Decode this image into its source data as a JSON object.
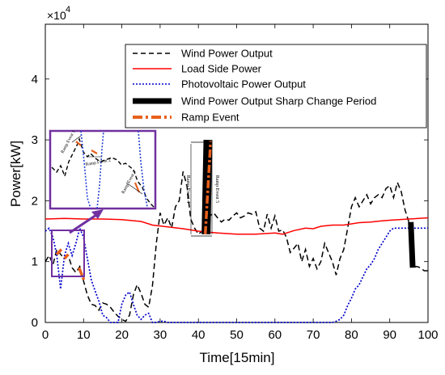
{
  "chart_data": {
    "type": "line",
    "xlabel": "Time[15min]",
    "ylabel": "Power[kW]",
    "exponent_base": "×10",
    "exponent_power": "4",
    "xlim": [
      0,
      100
    ],
    "ylim": [
      0,
      4.9
    ],
    "xticks": [
      0,
      10,
      20,
      30,
      40,
      50,
      60,
      70,
      80,
      90,
      100
    ],
    "yticks": [
      0,
      1,
      2,
      3,
      4
    ],
    "grid": false,
    "legend_position": "top-right",
    "legend": [
      {
        "label": "Wind Power Output",
        "style": "dashed-black"
      },
      {
        "label": "Load Side Power",
        "style": "solid-red"
      },
      {
        "label": "Photovoltaic Power Output",
        "style": "dotted-blue"
      },
      {
        "label": "Wind Power Output Sharp Change Period",
        "style": "thick-black"
      },
      {
        "label": "Ramp Event",
        "style": "dashdot-orange"
      }
    ],
    "series": [
      {
        "name": "Wind Power Output",
        "color": "#000000",
        "points": [
          [
            0,
            1.0
          ],
          [
            1,
            1.1
          ],
          [
            2,
            0.95
          ],
          [
            3,
            1.2
          ],
          [
            4,
            1.12
          ],
          [
            5,
            1.05
          ],
          [
            6,
            1.1
          ],
          [
            7,
            0.9
          ],
          [
            8,
            0.82
          ],
          [
            9,
            0.92
          ],
          [
            10,
            0.68
          ],
          [
            11,
            0.45
          ],
          [
            12,
            0.3
          ],
          [
            13,
            0.28
          ],
          [
            14,
            0.2
          ],
          [
            15,
            0.32
          ],
          [
            16,
            0.3
          ],
          [
            17,
            0.25
          ],
          [
            18,
            0.17
          ],
          [
            19,
            0.1
          ],
          [
            20,
            0.05
          ],
          [
            21,
            0.02
          ],
          [
            22,
            0.12
          ],
          [
            23,
            0.45
          ],
          [
            24,
            0.62
          ],
          [
            25,
            0.48
          ],
          [
            26,
            0.3
          ],
          [
            27,
            0.25
          ],
          [
            28,
            0.6
          ],
          [
            29,
            1.3
          ],
          [
            30,
            1.8
          ],
          [
            31,
            1.6
          ],
          [
            32,
            1.72
          ],
          [
            33,
            1.55
          ],
          [
            34,
            1.9
          ],
          [
            35,
            2.0
          ],
          [
            36,
            2.48
          ],
          [
            37,
            2.25
          ],
          [
            38,
            1.7
          ],
          [
            39,
            1.55
          ],
          [
            40,
            1.45
          ],
          [
            41,
            1.5
          ],
          [
            42,
            1.62
          ],
          [
            43,
            1.75
          ],
          [
            44,
            1.8
          ],
          [
            45,
            1.72
          ],
          [
            46,
            1.65
          ],
          [
            47,
            1.7
          ],
          [
            48,
            1.68
          ],
          [
            49,
            1.75
          ],
          [
            50,
            1.8
          ],
          [
            51,
            1.72
          ],
          [
            52,
            1.75
          ],
          [
            53,
            1.8
          ],
          [
            54,
            1.78
          ],
          [
            55,
            1.82
          ],
          [
            56,
            1.55
          ],
          [
            57,
            1.5
          ],
          [
            58,
            1.78
          ],
          [
            59,
            1.55
          ],
          [
            60,
            1.75
          ],
          [
            61,
            1.5
          ],
          [
            62,
            1.52
          ],
          [
            63,
            1.4
          ],
          [
            64,
            1.15
          ],
          [
            65,
            1.22
          ],
          [
            66,
            1.3
          ],
          [
            67,
            1.0
          ],
          [
            68,
            1.2
          ],
          [
            69,
            0.92
          ],
          [
            70,
            1.05
          ],
          [
            71,
            0.88
          ],
          [
            72,
            1.0
          ],
          [
            73,
            1.3
          ],
          [
            74,
            1.15
          ],
          [
            75,
            1.0
          ],
          [
            76,
            0.78
          ],
          [
            77,
            1.05
          ],
          [
            78,
            1.2
          ],
          [
            79,
            1.55
          ],
          [
            80,
            1.9
          ],
          [
            81,
            2.05
          ],
          [
            82,
            1.9
          ],
          [
            83,
            2.0
          ],
          [
            84,
            2.1
          ],
          [
            85,
            1.95
          ],
          [
            86,
            2.05
          ],
          [
            87,
            2.1
          ],
          [
            88,
            2.05
          ],
          [
            89,
            2.2
          ],
          [
            90,
            2.25
          ],
          [
            91,
            2.05
          ],
          [
            92,
            2.3
          ],
          [
            93,
            2.15
          ],
          [
            94,
            1.85
          ],
          [
            95,
            1.65
          ],
          [
            96,
            0.9
          ],
          [
            97,
            0.92
          ],
          [
            98,
            0.9
          ],
          [
            99,
            0.85
          ],
          [
            100,
            0.85
          ]
        ]
      },
      {
        "name": "Load Side Power",
        "color": "#ff0000",
        "points": [
          [
            0,
            1.7
          ],
          [
            5,
            1.71
          ],
          [
            10,
            1.7
          ],
          [
            15,
            1.7
          ],
          [
            20,
            1.69
          ],
          [
            25,
            1.66
          ],
          [
            28,
            1.6
          ],
          [
            32,
            1.57
          ],
          [
            36,
            1.54
          ],
          [
            40,
            1.5
          ],
          [
            45,
            1.47
          ],
          [
            50,
            1.45
          ],
          [
            55,
            1.45
          ],
          [
            60,
            1.47
          ],
          [
            62,
            1.45
          ],
          [
            65,
            1.51
          ],
          [
            68,
            1.55
          ],
          [
            70,
            1.54
          ],
          [
            72,
            1.58
          ],
          [
            75,
            1.6
          ],
          [
            78,
            1.6
          ],
          [
            82,
            1.64
          ],
          [
            85,
            1.65
          ],
          [
            88,
            1.67
          ],
          [
            90,
            1.68
          ],
          [
            95,
            1.7
          ],
          [
            100,
            1.72
          ]
        ]
      },
      {
        "name": "Photovoltaic Power Output",
        "color": "#0000cc",
        "points": [
          [
            0,
            1.5
          ],
          [
            1,
            1.55
          ],
          [
            2,
            1.4
          ],
          [
            3,
            1.1
          ],
          [
            4,
            0.55
          ],
          [
            5,
            1.1
          ],
          [
            6,
            1.3
          ],
          [
            7,
            1.1
          ],
          [
            8,
            1.3
          ],
          [
            9,
            1.55
          ],
          [
            10,
            1.4
          ],
          [
            11,
            1.05
          ],
          [
            12,
            0.7
          ],
          [
            13,
            0.52
          ],
          [
            14,
            0.35
          ],
          [
            15,
            0.12
          ],
          [
            16,
            0.08
          ],
          [
            17,
            0.0
          ],
          [
            18,
            0.0
          ],
          [
            19,
            0.0
          ],
          [
            20,
            0.3
          ],
          [
            21,
            0.45
          ],
          [
            22,
            0.5
          ],
          [
            23,
            0.3
          ],
          [
            24,
            0.12
          ],
          [
            25,
            0.05
          ],
          [
            26,
            0.12
          ],
          [
            27,
            0.15
          ],
          [
            28,
            0.0
          ],
          [
            29,
            0.0
          ],
          [
            30,
            0.02
          ],
          [
            31,
            0.02
          ],
          [
            32,
            0.0
          ],
          [
            35,
            0.0
          ],
          [
            40,
            0.0
          ],
          [
            50,
            0.0
          ],
          [
            60,
            0.0
          ],
          [
            70,
            0.0
          ],
          [
            75,
            0.0
          ],
          [
            76,
            0.02
          ],
          [
            77,
            0.05
          ],
          [
            78,
            0.12
          ],
          [
            79,
            0.28
          ],
          [
            80,
            0.4
          ],
          [
            81,
            0.55
          ],
          [
            82,
            0.62
          ],
          [
            83,
            0.75
          ],
          [
            84,
            0.88
          ],
          [
            85,
            0.95
          ],
          [
            86,
            1.05
          ],
          [
            87,
            1.2
          ],
          [
            88,
            1.3
          ],
          [
            89,
            1.4
          ],
          [
            90,
            1.5
          ],
          [
            91,
            1.55
          ],
          [
            92,
            1.55
          ],
          [
            95,
            1.55
          ],
          [
            100,
            1.55
          ]
        ]
      }
    ],
    "sharp_change_periods": [
      {
        "x_start": 42,
        "x_end": 42.5,
        "y_start": 1.45,
        "y_end": 3.0
      },
      {
        "x_start": 95.5,
        "x_end": 96,
        "y_start": 1.65,
        "y_end": 0.9
      }
    ],
    "ramp_event_segments": [
      {
        "x_start": 3,
        "x_end": 4.2,
        "y_start": 1.12,
        "y_end": 1.2
      },
      {
        "x_start": 5,
        "x_end": 6,
        "y_start": 1.05,
        "y_end": 1.12
      },
      {
        "x_start": 8.8,
        "x_end": 10.2,
        "y_start": 0.9,
        "y_end": 0.68
      },
      {
        "x_start": 41.8,
        "x_end": 43.2,
        "y_start": 1.45,
        "y_end": 2.98
      }
    ],
    "annotations": {
      "main_ramp_labels": [
        "Ramp Event 4",
        "Ramp Event 5"
      ],
      "inset_labels": [
        "Ramp Event 1",
        "Ramp Event 2",
        "Ramp Event 3"
      ]
    }
  }
}
